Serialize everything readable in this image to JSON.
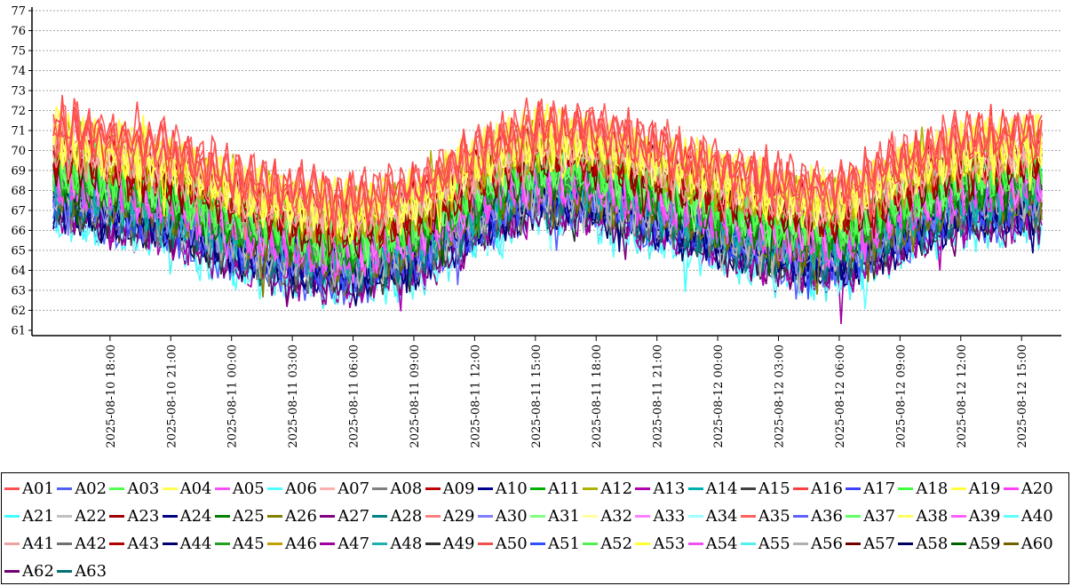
{
  "chart_data": {
    "type": "line",
    "title": "",
    "xlabel": "",
    "ylabel": "",
    "ylim": [
      61,
      77
    ],
    "y_ticks": [
      61,
      62,
      63,
      64,
      65,
      66,
      67,
      68,
      69,
      70,
      71,
      72,
      73,
      74,
      75,
      76,
      77
    ],
    "grid": "horizontal dotted",
    "x_start_hours": 15.2,
    "x_end_hours": 64.0,
    "x_ticks": [
      {
        "label": "2025-08-10  18:00",
        "hours": 18
      },
      {
        "label": "2025-08-10  21:00",
        "hours": 21
      },
      {
        "label": "2025-08-11  00:00",
        "hours": 24
      },
      {
        "label": "2025-08-11  03:00",
        "hours": 27
      },
      {
        "label": "2025-08-11  06:00",
        "hours": 30
      },
      {
        "label": "2025-08-11  09:00",
        "hours": 33
      },
      {
        "label": "2025-08-11  12:00",
        "hours": 36
      },
      {
        "label": "2025-08-11  15:00",
        "hours": 39
      },
      {
        "label": "2025-08-11  18:00",
        "hours": 42
      },
      {
        "label": "2025-08-11  21:00",
        "hours": 45
      },
      {
        "label": "2025-08-12  00:00",
        "hours": 48
      },
      {
        "label": "2025-08-12  03:00",
        "hours": 51
      },
      {
        "label": "2025-08-12  06:00",
        "hours": 54
      },
      {
        "label": "2025-08-12  09:00",
        "hours": 57
      },
      {
        "label": "2025-08-12  12:00",
        "hours": 60
      },
      {
        "label": "2025-08-12  15:00",
        "hours": 63
      }
    ],
    "trend_hours": [
      15.2,
      18,
      21,
      24,
      27,
      30,
      33,
      36,
      39,
      42,
      45,
      48,
      51,
      54,
      57,
      60,
      64
    ],
    "trend_base": [
      68.2,
      67.6,
      67.0,
      65.8,
      65.0,
      64.6,
      65.2,
      67.0,
      68.3,
      68.0,
      67.2,
      66.3,
      65.4,
      65.1,
      66.5,
      67.6,
      68.0
    ],
    "series": [
      {
        "name": "A01",
        "color": "#ff5050",
        "offset": 3.2
      },
      {
        "name": "A02",
        "color": "#5060ff",
        "offset": -1.0
      },
      {
        "name": "A03",
        "color": "#50ff50",
        "offset": 1.4
      },
      {
        "name": "A04",
        "color": "#ffff50",
        "offset": 2.6
      },
      {
        "name": "A05",
        "color": "#ff50ff",
        "offset": 0.6
      },
      {
        "name": "A06",
        "color": "#50ffff",
        "offset": -1.3
      },
      {
        "name": "A07",
        "color": "#ffb0b0",
        "offset": 2.4
      },
      {
        "name": "A08",
        "color": "#808080",
        "offset": -0.6
      },
      {
        "name": "A09",
        "color": "#c00000",
        "offset": 1.9
      },
      {
        "name": "A10",
        "color": "#000090",
        "offset": -0.3
      },
      {
        "name": "A11",
        "color": "#00b000",
        "offset": 0.9
      },
      {
        "name": "A12",
        "color": "#b0b000",
        "offset": 2.2
      },
      {
        "name": "A13",
        "color": "#b000b0",
        "offset": -0.9
      },
      {
        "name": "A14",
        "color": "#00b0b0",
        "offset": 0.2
      },
      {
        "name": "A15",
        "color": "#404040",
        "offset": -0.7
      },
      {
        "name": "A16",
        "color": "#ff4040",
        "offset": 2.9
      },
      {
        "name": "A17",
        "color": "#4040ff",
        "offset": -0.4
      },
      {
        "name": "A18",
        "color": "#40ff40",
        "offset": 1.1
      },
      {
        "name": "A19",
        "color": "#ffff40",
        "offset": 2.1
      },
      {
        "name": "A20",
        "color": "#ff40ff",
        "offset": 0.3
      },
      {
        "name": "A21",
        "color": "#40ffff",
        "offset": -1.1
      },
      {
        "name": "A22",
        "color": "#c0c0c0",
        "offset": -0.2
      },
      {
        "name": "A23",
        "color": "#a00000",
        "offset": 1.6
      },
      {
        "name": "A24",
        "color": "#000080",
        "offset": -0.8
      },
      {
        "name": "A25",
        "color": "#008000",
        "offset": 0.7
      },
      {
        "name": "A26",
        "color": "#808000",
        "offset": 0.0
      },
      {
        "name": "A27",
        "color": "#800080",
        "offset": -1.2
      },
      {
        "name": "A28",
        "color": "#008080",
        "offset": -0.5
      },
      {
        "name": "A29",
        "color": "#ff8080",
        "offset": 2.0
      },
      {
        "name": "A30",
        "color": "#8080ff",
        "offset": -0.1
      },
      {
        "name": "A31",
        "color": "#80ff80",
        "offset": 1.3
      },
      {
        "name": "A32",
        "color": "#ffffa0",
        "offset": 2.3
      },
      {
        "name": "A33",
        "color": "#ff80ff",
        "offset": 0.8
      },
      {
        "name": "A34",
        "color": "#a0ffff",
        "offset": -1.0
      },
      {
        "name": "A35",
        "color": "#ff6060",
        "offset": 3.0
      },
      {
        "name": "A36",
        "color": "#6060ff",
        "offset": -0.6
      },
      {
        "name": "A37",
        "color": "#60ff60",
        "offset": 1.2
      },
      {
        "name": "A38",
        "color": "#ffff60",
        "offset": 2.5
      },
      {
        "name": "A39",
        "color": "#ff60ff",
        "offset": 0.5
      },
      {
        "name": "A40",
        "color": "#60ffff",
        "offset": -1.2
      },
      {
        "name": "A41",
        "color": "#f0a0a0",
        "offset": 2.2
      },
      {
        "name": "A42",
        "color": "#707070",
        "offset": -0.4
      },
      {
        "name": "A43",
        "color": "#b00000",
        "offset": 1.7
      },
      {
        "name": "A44",
        "color": "#000070",
        "offset": -0.2
      },
      {
        "name": "A45",
        "color": "#20a020",
        "offset": 0.9
      },
      {
        "name": "A46",
        "color": "#c0a000",
        "offset": 2.0
      },
      {
        "name": "A47",
        "color": "#a000a0",
        "offset": -1.1
      },
      {
        "name": "A48",
        "color": "#20b0b0",
        "offset": 0.1
      },
      {
        "name": "A49",
        "color": "#303030",
        "offset": -0.7
      },
      {
        "name": "A50",
        "color": "#f05050",
        "offset": 2.8
      },
      {
        "name": "A51",
        "color": "#3050ff",
        "offset": -0.3
      },
      {
        "name": "A52",
        "color": "#50f050",
        "offset": 1.0
      },
      {
        "name": "A53",
        "color": "#ffff30",
        "offset": 2.4
      },
      {
        "name": "A54",
        "color": "#f050f0",
        "offset": 0.4
      },
      {
        "name": "A55",
        "color": "#50f0f0",
        "offset": -1.4
      },
      {
        "name": "A56",
        "color": "#b0b0b0",
        "offset": -0.1
      },
      {
        "name": "A57",
        "color": "#700000",
        "offset": 1.5
      },
      {
        "name": "A58",
        "color": "#000060",
        "offset": -0.9
      },
      {
        "name": "A59",
        "color": "#006000",
        "offset": 0.6
      },
      {
        "name": "A60",
        "color": "#706000",
        "offset": 0.1
      },
      {
        "name": "A62",
        "color": "#700070",
        "offset": -1.0
      },
      {
        "name": "A63",
        "color": "#007070",
        "offset": -0.4
      }
    ]
  }
}
